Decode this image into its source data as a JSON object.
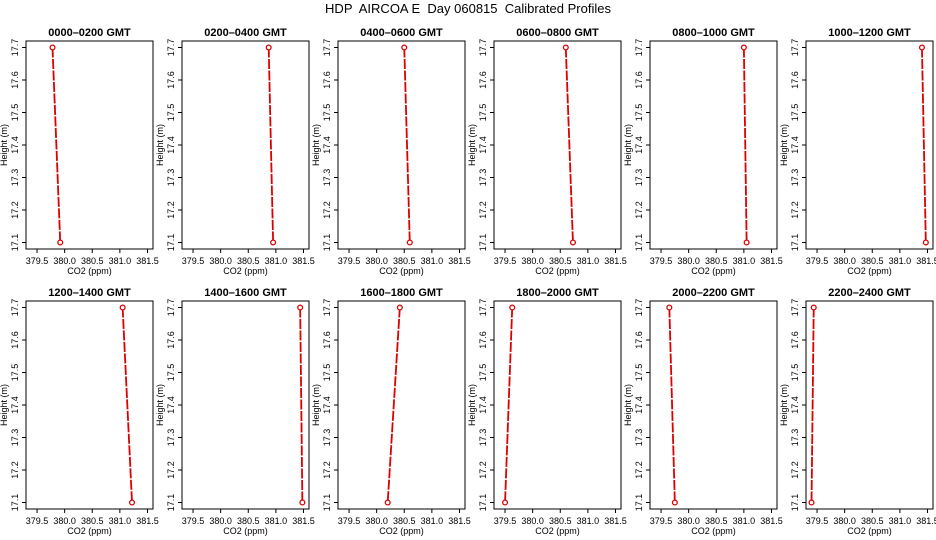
{
  "title": "HDP  AIRCOA E  Day 060815  Calibrated Profiles",
  "chart_data": [
    {
      "type": "line",
      "title": "0000–0200 GMT",
      "xlabel": "CO2 (ppm)",
      "ylabel": "Height (m)",
      "xlim": [
        379.3,
        381.6
      ],
      "ylim": [
        17.08,
        17.72
      ],
      "xticks": [
        "379.5",
        "380.0",
        "380.5",
        "381.0",
        "381.5"
      ],
      "yticks": [
        "17.1",
        "17.2",
        "17.3",
        "17.4",
        "17.5",
        "17.6",
        "17.7"
      ],
      "series": [
        {
          "x": [
            379.78,
            379.92
          ],
          "y": [
            17.7,
            17.1
          ]
        }
      ]
    },
    {
      "type": "line",
      "title": "0200–0400 GMT",
      "xlabel": "CO2 (ppm)",
      "ylabel": "Height (m)",
      "xlim": [
        379.3,
        381.6
      ],
      "ylim": [
        17.08,
        17.72
      ],
      "xticks": [
        "379.5",
        "380.0",
        "380.5",
        "381.0",
        "381.5"
      ],
      "yticks": [
        "17.1",
        "17.2",
        "17.3",
        "17.4",
        "17.5",
        "17.6",
        "17.7"
      ],
      "series": [
        {
          "x": [
            380.87,
            380.95
          ],
          "y": [
            17.7,
            17.1
          ]
        }
      ]
    },
    {
      "type": "line",
      "title": "0400–0600 GMT",
      "xlabel": "CO2 (ppm)",
      "ylabel": "Height (m)",
      "xlim": [
        379.3,
        381.6
      ],
      "ylim": [
        17.08,
        17.72
      ],
      "xticks": [
        "379.5",
        "380.0",
        "380.5",
        "381.0",
        "381.5"
      ],
      "yticks": [
        "17.1",
        "17.2",
        "17.3",
        "17.4",
        "17.5",
        "17.6",
        "17.7"
      ],
      "series": [
        {
          "x": [
            380.5,
            380.6
          ],
          "y": [
            17.7,
            17.1
          ]
        }
      ]
    },
    {
      "type": "line",
      "title": "0600–0800 GMT",
      "xlabel": "CO2 (ppm)",
      "ylabel": "Height (m)",
      "xlim": [
        379.3,
        381.6
      ],
      "ylim": [
        17.08,
        17.72
      ],
      "xticks": [
        "379.5",
        "380.0",
        "380.5",
        "381.0",
        "381.5"
      ],
      "yticks": [
        "17.1",
        "17.2",
        "17.3",
        "17.4",
        "17.5",
        "17.6",
        "17.7"
      ],
      "series": [
        {
          "x": [
            380.6,
            380.73
          ],
          "y": [
            17.7,
            17.1
          ]
        }
      ]
    },
    {
      "type": "line",
      "title": "0800–1000 GMT",
      "xlabel": "CO2 (ppm)",
      "ylabel": "Height (m)",
      "xlim": [
        379.3,
        381.6
      ],
      "ylim": [
        17.08,
        17.72
      ],
      "xticks": [
        "379.5",
        "380.0",
        "380.5",
        "381.0",
        "381.5"
      ],
      "yticks": [
        "17.1",
        "17.2",
        "17.3",
        "17.4",
        "17.5",
        "17.6",
        "17.7"
      ],
      "series": [
        {
          "x": [
            381.0,
            381.05
          ],
          "y": [
            17.7,
            17.1
          ]
        }
      ]
    },
    {
      "type": "line",
      "title": "1000–1200 GMT",
      "xlabel": "CO2 (ppm)",
      "ylabel": "Height (m)",
      "xlim": [
        379.3,
        381.6
      ],
      "ylim": [
        17.08,
        17.72
      ],
      "xticks": [
        "379.5",
        "380.0",
        "380.5",
        "381.0",
        "381.5"
      ],
      "yticks": [
        "17.1",
        "17.2",
        "17.3",
        "17.4",
        "17.5",
        "17.6",
        "17.7"
      ],
      "series": [
        {
          "x": [
            381.4,
            381.47
          ],
          "y": [
            17.7,
            17.1
          ]
        }
      ]
    },
    {
      "type": "line",
      "title": "1200–1400 GMT",
      "xlabel": "CO2 (ppm)",
      "ylabel": "Height (m)",
      "xlim": [
        379.3,
        381.6
      ],
      "ylim": [
        17.08,
        17.72
      ],
      "xticks": [
        "379.5",
        "380.0",
        "380.5",
        "381.0",
        "381.5"
      ],
      "yticks": [
        "17.1",
        "17.2",
        "17.3",
        "17.4",
        "17.5",
        "17.6",
        "17.7"
      ],
      "series": [
        {
          "x": [
            381.05,
            381.22
          ],
          "y": [
            17.7,
            17.1
          ]
        }
      ]
    },
    {
      "type": "line",
      "title": "1400–1600 GMT",
      "xlabel": "CO2 (ppm)",
      "ylabel": "Height (m)",
      "xlim": [
        379.3,
        381.6
      ],
      "ylim": [
        17.08,
        17.72
      ],
      "xticks": [
        "379.5",
        "380.0",
        "380.5",
        "381.0",
        "381.5"
      ],
      "yticks": [
        "17.1",
        "17.2",
        "17.3",
        "17.4",
        "17.5",
        "17.6",
        "17.7"
      ],
      "series": [
        {
          "x": [
            381.44,
            381.48
          ],
          "y": [
            17.7,
            17.1
          ]
        }
      ]
    },
    {
      "type": "line",
      "title": "1600–1800 GMT",
      "xlabel": "CO2 (ppm)",
      "ylabel": "Height (m)",
      "xlim": [
        379.3,
        381.6
      ],
      "ylim": [
        17.08,
        17.72
      ],
      "xticks": [
        "379.5",
        "380.0",
        "380.5",
        "381.0",
        "381.5"
      ],
      "yticks": [
        "17.1",
        "17.2",
        "17.3",
        "17.4",
        "17.5",
        "17.6",
        "17.7"
      ],
      "series": [
        {
          "x": [
            380.42,
            380.2
          ],
          "y": [
            17.7,
            17.1
          ]
        }
      ]
    },
    {
      "type": "line",
      "title": "1800–2000 GMT",
      "xlabel": "CO2 (ppm)",
      "ylabel": "Height (m)",
      "xlim": [
        379.3,
        381.6
      ],
      "ylim": [
        17.08,
        17.72
      ],
      "xticks": [
        "379.5",
        "380.0",
        "380.5",
        "381.0",
        "381.5"
      ],
      "yticks": [
        "17.1",
        "17.2",
        "17.3",
        "17.4",
        "17.5",
        "17.6",
        "17.7"
      ],
      "series": [
        {
          "x": [
            379.63,
            379.5
          ],
          "y": [
            17.7,
            17.1
          ]
        }
      ]
    },
    {
      "type": "line",
      "title": "2000–2200 GMT",
      "xlabel": "CO2 (ppm)",
      "ylabel": "Height (m)",
      "xlim": [
        379.3,
        381.6
      ],
      "ylim": [
        17.08,
        17.72
      ],
      "xticks": [
        "379.5",
        "380.0",
        "380.5",
        "381.0",
        "381.5"
      ],
      "yticks": [
        "17.1",
        "17.2",
        "17.3",
        "17.4",
        "17.5",
        "17.6",
        "17.7"
      ],
      "series": [
        {
          "x": [
            379.65,
            379.75
          ],
          "y": [
            17.7,
            17.1
          ]
        }
      ]
    },
    {
      "type": "line",
      "title": "2200–2400 GMT",
      "xlabel": "CO2 (ppm)",
      "ylabel": "Height (m)",
      "xlim": [
        379.3,
        381.6
      ],
      "ylim": [
        17.08,
        17.72
      ],
      "xticks": [
        "379.5",
        "380.0",
        "380.5",
        "381.0",
        "381.5"
      ],
      "yticks": [
        "17.1",
        "17.2",
        "17.3",
        "17.4",
        "17.5",
        "17.6",
        "17.7"
      ],
      "series": [
        {
          "x": [
            379.44,
            379.4
          ],
          "y": [
            17.7,
            17.1
          ]
        }
      ]
    }
  ],
  "colors": {
    "series": "#dd0000",
    "axes": "#000000"
  }
}
